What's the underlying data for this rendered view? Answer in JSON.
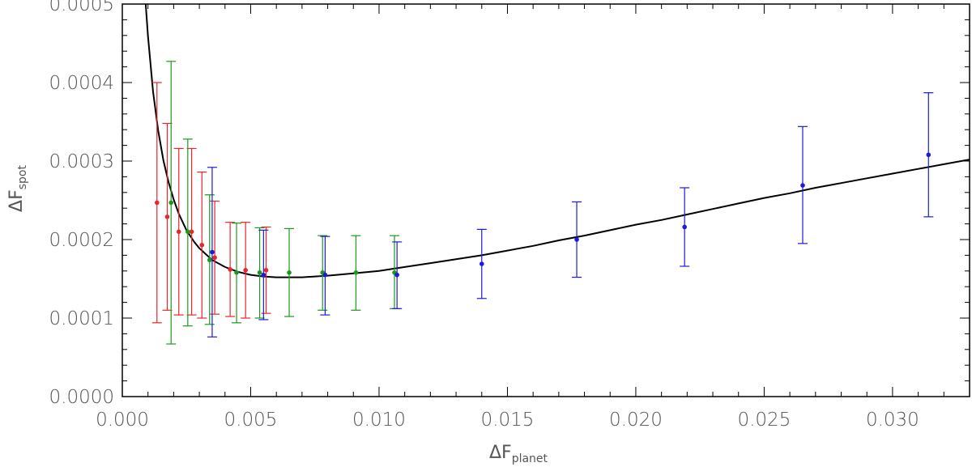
{
  "chart_data": {
    "type": "scatter",
    "title": "",
    "xlabel": {
      "main": "ΔF",
      "sub": "planet"
    },
    "ylabel": {
      "main": "ΔF",
      "sub": "spot"
    },
    "xlim": [
      0.0,
      0.033
    ],
    "ylim": [
      0.0,
      0.0005
    ],
    "x_ticks": [
      0.0,
      0.005,
      0.01,
      0.015,
      0.02,
      0.025,
      0.03
    ],
    "x_tick_labels": [
      "0.000",
      "0.005",
      "0.010",
      "0.015",
      "0.020",
      "0.025",
      "0.030"
    ],
    "y_ticks": [
      0.0,
      0.0001,
      0.0002,
      0.0003,
      0.0004,
      0.0005
    ],
    "y_tick_labels": [
      "0.0000",
      "0.0001",
      "0.0002",
      "0.0003",
      "0.0004",
      "0.0005"
    ],
    "grid": false,
    "series": [
      {
        "color": "#e8262b",
        "points": [
          {
            "x": 0.00135,
            "y": 0.000247,
            "lo": 9.4e-05,
            "hi": 0.0004
          },
          {
            "x": 0.00175,
            "y": 0.000229,
            "lo": 0.00011,
            "hi": 0.000348
          },
          {
            "x": 0.0022,
            "y": 0.00021,
            "lo": 0.000104,
            "hi": 0.000316
          },
          {
            "x": 0.0027,
            "y": 0.00021,
            "lo": 0.000104,
            "hi": 0.000316
          },
          {
            "x": 0.0031,
            "y": 0.000193,
            "lo": 0.0001,
            "hi": 0.000286
          },
          {
            "x": 0.0036,
            "y": 0.000177,
            "lo": 0.000105,
            "hi": 0.000249
          },
          {
            "x": 0.0042,
            "y": 0.000162,
            "lo": 0.000102,
            "hi": 0.000222
          },
          {
            "x": 0.0048,
            "y": 0.000161,
            "lo": 0.0001,
            "hi": 0.000222
          },
          {
            "x": 0.0056,
            "y": 0.000161,
            "lo": 0.000106,
            "hi": 0.000216
          }
        ]
      },
      {
        "color": "#1a9a1a",
        "points": [
          {
            "x": 0.0019,
            "y": 0.000247,
            "lo": 6.7e-05,
            "hi": 0.000427
          },
          {
            "x": 0.00255,
            "y": 0.00021,
            "lo": 9e-05,
            "hi": 0.000328
          },
          {
            "x": 0.0034,
            "y": 0.000174,
            "lo": 9.2e-05,
            "hi": 0.000257
          },
          {
            "x": 0.00445,
            "y": 0.000158,
            "lo": 9.4e-05,
            "hi": 0.000221
          },
          {
            "x": 0.00535,
            "y": 0.000158,
            "lo": 0.0001,
            "hi": 0.000215
          },
          {
            "x": 0.0065,
            "y": 0.000158,
            "lo": 0.000102,
            "hi": 0.000214
          },
          {
            "x": 0.0078,
            "y": 0.000158,
            "lo": 0.00011,
            "hi": 0.000205
          },
          {
            "x": 0.0091,
            "y": 0.000158,
            "lo": 0.00011,
            "hi": 0.000205
          },
          {
            "x": 0.0106,
            "y": 0.000158,
            "lo": 0.000112,
            "hi": 0.000205
          }
        ]
      },
      {
        "color": "#1c1cd6",
        "points": [
          {
            "x": 0.0035,
            "y": 0.000184,
            "lo": 7.6e-05,
            "hi": 0.000292
          },
          {
            "x": 0.0055,
            "y": 0.000155,
            "lo": 9.8e-05,
            "hi": 0.000212
          },
          {
            "x": 0.0079,
            "y": 0.000155,
            "lo": 0.000104,
            "hi": 0.000204
          },
          {
            "x": 0.0107,
            "y": 0.000155,
            "lo": 0.000112,
            "hi": 0.000197
          },
          {
            "x": 0.014,
            "y": 0.000169,
            "lo": 0.000125,
            "hi": 0.000213
          },
          {
            "x": 0.0177,
            "y": 0.0002,
            "lo": 0.000152,
            "hi": 0.000248
          },
          {
            "x": 0.0219,
            "y": 0.000216,
            "lo": 0.000166,
            "hi": 0.000266
          },
          {
            "x": 0.0265,
            "y": 0.000269,
            "lo": 0.000195,
            "hi": 0.000344
          },
          {
            "x": 0.0314,
            "y": 0.000308,
            "lo": 0.000229,
            "hi": 0.000387
          }
        ]
      }
    ],
    "fit_curve": {
      "color": "#000000",
      "x": [
        0.0009,
        0.001,
        0.0012,
        0.0014,
        0.0016,
        0.0018,
        0.002,
        0.0022,
        0.0025,
        0.0028,
        0.003,
        0.0035,
        0.004,
        0.0045,
        0.005,
        0.0055,
        0.006,
        0.0065,
        0.007,
        0.0075,
        0.008,
        0.009,
        0.01,
        0.011,
        0.012,
        0.013,
        0.014,
        0.015,
        0.016,
        0.017,
        0.018,
        0.019,
        0.02,
        0.021,
        0.022,
        0.023,
        0.024,
        0.025,
        0.026,
        0.027,
        0.028,
        0.029,
        0.03,
        0.031,
        0.032,
        0.033
      ],
      "y": [
        0.000505,
        0.000459,
        0.000388,
        0.000338,
        0.000301,
        0.000273,
        0.000251,
        0.000233,
        0.000212,
        0.000197,
        0.000189,
        0.000174,
        0.000165,
        0.000159,
        0.000155,
        0.000153,
        0.000152,
        0.000152,
        0.000152,
        0.000153,
        0.000154,
        0.000157,
        0.00016,
        0.000165,
        0.00017,
        0.000175,
        0.00018,
        0.000186,
        0.000192,
        0.000199,
        0.000205,
        0.000212,
        0.000219,
        0.000225,
        0.000232,
        0.000239,
        0.000246,
        0.000253,
        0.000259,
        0.000266,
        0.000272,
        0.000278,
        0.000284,
        0.00029,
        0.000296,
        0.000302
      ]
    }
  }
}
